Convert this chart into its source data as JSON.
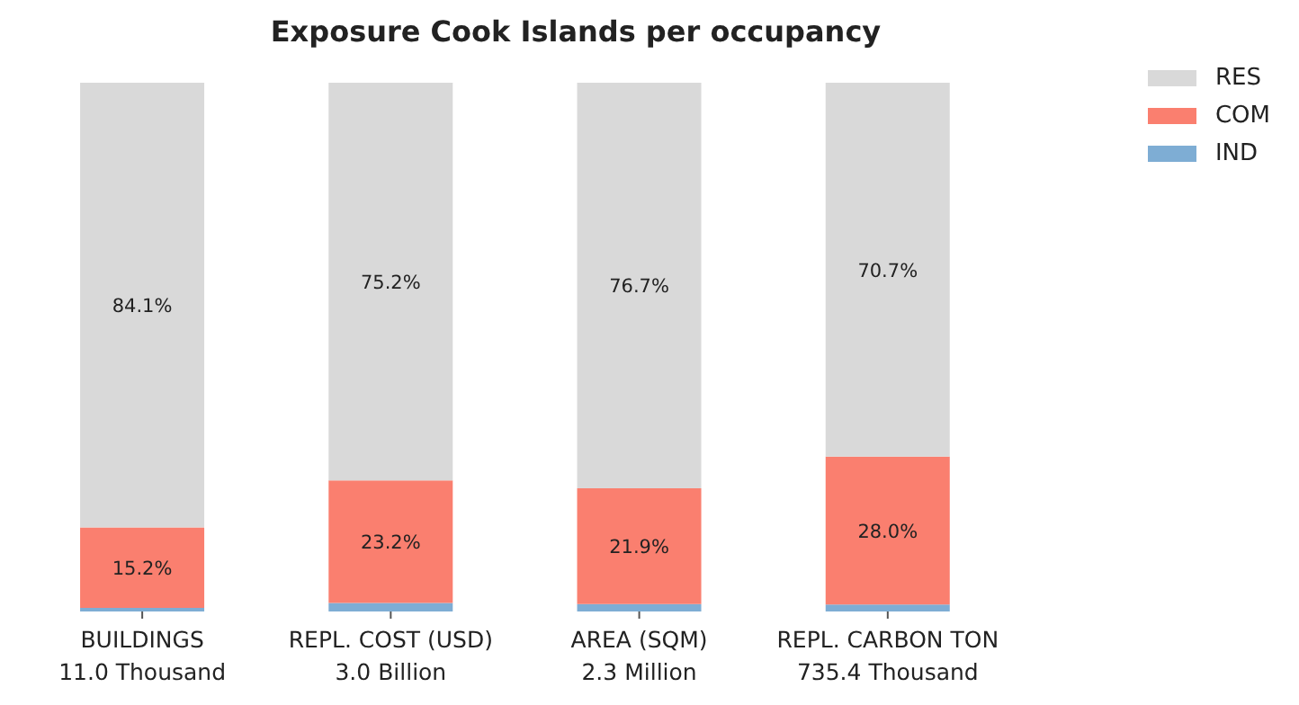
{
  "chart_data": {
    "type": "bar",
    "title": "Exposure Cook Islands per occupancy",
    "categories": [
      "BUILDINGS\n11.0 Thousand",
      "REPL. COST (USD)\n3.0 Billion",
      "AREA (SQM)\n2.3 Million",
      "REPL. CARBON TON\n735.4 Thousand"
    ],
    "stacked": true,
    "ylim": [
      0,
      100
    ],
    "tick_labels": "x",
    "legend": "top right",
    "grid": false,
    "series": [
      {
        "name": "IND",
        "color": "#7eadd4",
        "values": [
          0.7,
          1.6,
          1.4,
          1.3
        ],
        "value_labels": [
          null,
          null,
          null,
          null
        ]
      },
      {
        "name": "COM",
        "color": "#fa7f6f",
        "values": [
          15.2,
          23.2,
          21.9,
          28.0
        ],
        "value_labels": [
          "15.2%",
          "23.2%",
          "21.9%",
          "28.0%"
        ]
      },
      {
        "name": "RES",
        "color": "#d9d9d9",
        "values": [
          84.1,
          75.2,
          76.7,
          70.7
        ],
        "value_labels": [
          "84.1%",
          "75.2%",
          "76.7%",
          "70.7%"
        ]
      }
    ]
  }
}
